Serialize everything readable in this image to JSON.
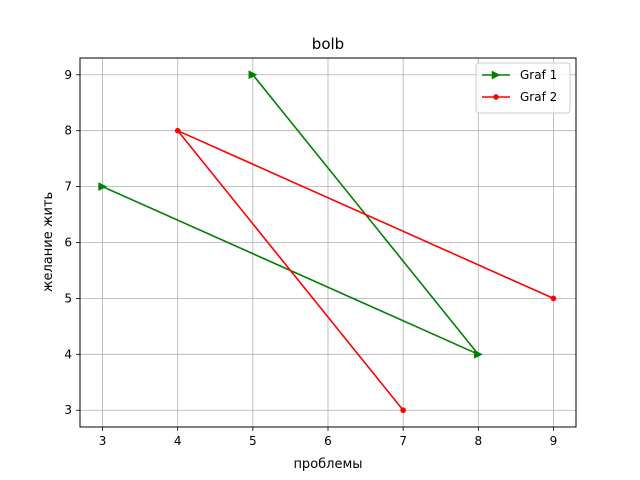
{
  "chart_data": {
    "type": "line",
    "title": "bolb",
    "xlabel": "проблемы",
    "ylabel": "желание жить",
    "xlim": [
      2.7,
      9.3
    ],
    "ylim": [
      2.7,
      9.3
    ],
    "xticks": [
      3,
      4,
      5,
      6,
      7,
      8,
      9
    ],
    "yticks": [
      3,
      4,
      5,
      6,
      7,
      8,
      9
    ],
    "grid": true,
    "legend_position": "top-right",
    "series": [
      {
        "name": "Graf 1",
        "color": "#008000",
        "marker": "triangle-right",
        "x": [
          3,
          8,
          5
        ],
        "y": [
          7,
          4,
          9
        ]
      },
      {
        "name": "Graf 2",
        "color": "#ff0000",
        "marker": "circle",
        "x": [
          9,
          4,
          7
        ],
        "y": [
          5,
          8,
          3
        ]
      }
    ]
  }
}
